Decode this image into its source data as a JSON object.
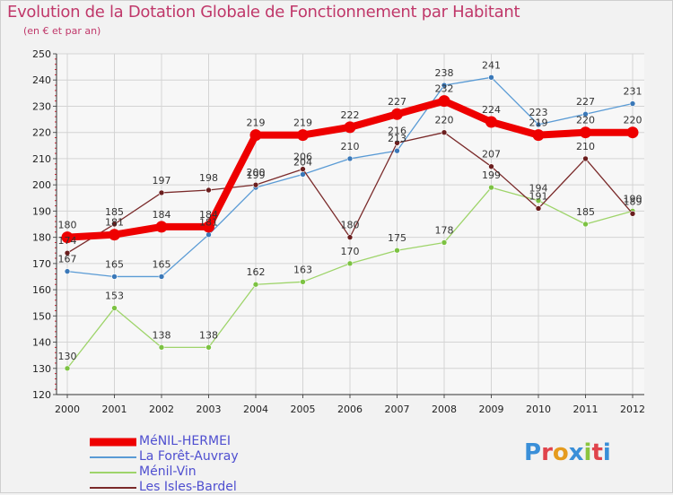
{
  "header": {
    "title": "Evolution de la Dotation Globale de Fonctionnement par Habitant",
    "subtitle": "(en € et par an)"
  },
  "logo": {
    "text": "Proxiti",
    "letter_colors": [
      "#3a8fd8",
      "#e0444c",
      "#e59b1e",
      "#3a8fd8",
      "#8bc53f",
      "#e0444c",
      "#3a8fd8"
    ]
  },
  "chart_data": {
    "type": "line",
    "title": "Evolution de la Dotation Globale de Fonctionnement par Habitant",
    "subtitle": "(en € et par an)",
    "xlabel": "",
    "ylabel": "",
    "x": [
      "2000",
      "2001",
      "2002",
      "2003",
      "2004",
      "2005",
      "2006",
      "2007",
      "2008",
      "2009",
      "2010",
      "2011",
      "2012"
    ],
    "ylim": [
      120,
      250
    ],
    "yticks": [
      120,
      130,
      140,
      150,
      160,
      170,
      180,
      190,
      200,
      210,
      220,
      230,
      240,
      250
    ],
    "grid": true,
    "legend_position": "bottom-left",
    "series": [
      {
        "name": "La Forêt-Auvray",
        "color": "#5a9bd5",
        "marker_color": "#3a78b8",
        "emphasis": false,
        "values": [
          167,
          165,
          165,
          181,
          199,
          204,
          210,
          213,
          238,
          241,
          223,
          227,
          231
        ],
        "labels": [
          "167",
          "165",
          "165",
          "181",
          "199",
          "204",
          "210",
          "213",
          "238",
          "241",
          "223",
          "227",
          "231"
        ]
      },
      {
        "name": "Ménil-Vin",
        "color": "#9ed46a",
        "marker_color": "#7cc242",
        "emphasis": false,
        "values": [
          130,
          153,
          138,
          138,
          162,
          163,
          170,
          175,
          178,
          199,
          194,
          185,
          190
        ],
        "labels": [
          "130",
          "153",
          "138",
          "138",
          "162",
          "163",
          "170",
          "175",
          "178",
          "199",
          "194",
          "185",
          "190"
        ]
      },
      {
        "name": "Les Isles-Bardel",
        "color": "#7a2a2a",
        "marker_color": "#6b1e1e",
        "emphasis": false,
        "values": [
          174,
          185,
          197,
          198,
          200,
          206,
          180,
          216,
          220,
          207,
          191,
          210,
          189
        ],
        "labels": [
          "174",
          "185",
          "197",
          "198",
          "200",
          "206",
          "180",
          "216",
          "220",
          "207",
          "191",
          "210",
          "189"
        ]
      },
      {
        "name": "MéNIL-HERMEI",
        "color": "#ee0000",
        "marker_color": "#ee0000",
        "emphasis": true,
        "values": [
          180,
          181,
          184,
          184,
          219,
          219,
          222,
          227,
          232,
          224,
          219,
          220,
          220
        ],
        "labels": [
          "180",
          "181",
          "184",
          "184",
          "219",
          "219",
          "222",
          "227",
          "232",
          "224",
          "219",
          "220",
          "220"
        ]
      }
    ],
    "legend_order": [
      "MéNIL-HERMEI",
      "La Forêt-Auvray",
      "Ménil-Vin",
      "Les Isles-Bardel"
    ]
  }
}
